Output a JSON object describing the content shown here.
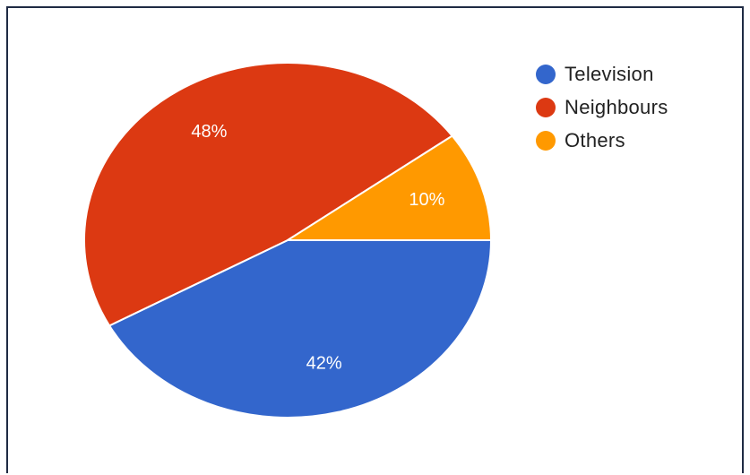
{
  "chart_data": {
    "type": "pie",
    "title": "",
    "legend_position": "top-right",
    "slices": [
      {
        "label": "Television",
        "value": 42,
        "value_label": "42%",
        "color": "#3366cc"
      },
      {
        "label": "Neighbours",
        "value": 48,
        "value_label": "48%",
        "color": "#dc3912"
      },
      {
        "label": "Others",
        "value": 10,
        "value_label": "10%",
        "color": "#ff9900"
      }
    ],
    "slice_border_color": "#ffffff",
    "data_label_color": "#ffffff"
  }
}
